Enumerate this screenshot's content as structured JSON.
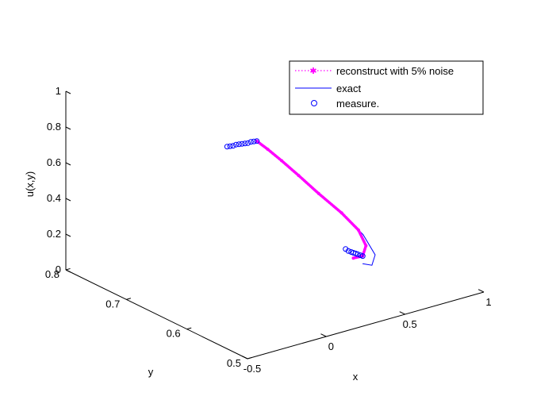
{
  "chart_data": {
    "type": "line",
    "title": "",
    "xlabel": "x",
    "ylabel": "y",
    "zlabel": "u(x,y)",
    "xlim": [
      -0.5,
      1
    ],
    "ylim": [
      0.5,
      0.8
    ],
    "zlim": [
      0,
      1
    ],
    "x_ticks": [
      "-0.5",
      "0",
      "0.5",
      "1"
    ],
    "y_ticks": [
      "0.5",
      "0.6",
      "0.7",
      "0.8"
    ],
    "z_ticks": [
      "0",
      "0.2",
      "0.4",
      "0.6",
      "0.8",
      "1"
    ],
    "grid": false,
    "legend_position": "top-right",
    "series": [
      {
        "name": "reconstruct with 5% noise",
        "style": "dotted-star",
        "color": "#ff00ff",
        "points": [
          [
            0.52,
            0.75,
            0.55
          ],
          [
            0.57,
            0.745,
            0.5
          ],
          [
            0.62,
            0.735,
            0.44
          ],
          [
            0.67,
            0.72,
            0.37
          ],
          [
            0.72,
            0.7,
            0.29
          ],
          [
            0.77,
            0.675,
            0.21
          ],
          [
            0.8,
            0.655,
            0.14
          ],
          [
            0.79,
            0.64,
            0.08
          ],
          [
            0.75,
            0.635,
            0.04
          ],
          [
            0.71,
            0.64,
            0.03
          ]
        ]
      },
      {
        "name": "exact",
        "style": "solid",
        "color": "#0000ff",
        "points": [
          [
            0.52,
            0.75,
            0.55
          ],
          [
            0.57,
            0.745,
            0.5
          ],
          [
            0.62,
            0.735,
            0.44
          ],
          [
            0.67,
            0.72,
            0.37
          ],
          [
            0.72,
            0.7,
            0.29
          ],
          [
            0.77,
            0.675,
            0.21
          ],
          [
            0.81,
            0.65,
            0.12
          ],
          [
            0.81,
            0.63,
            0.04
          ],
          [
            0.77,
            0.625,
            0.0
          ],
          [
            0.73,
            0.63,
            0.01
          ]
        ]
      },
      {
        "name": "measure.",
        "style": "circle",
        "color": "#0000ff",
        "points": [
          [
            0.37,
            0.76,
            0.54
          ],
          [
            0.385,
            0.759,
            0.54
          ],
          [
            0.4,
            0.758,
            0.54
          ],
          [
            0.415,
            0.757,
            0.545
          ],
          [
            0.43,
            0.756,
            0.545
          ],
          [
            0.445,
            0.755,
            0.545
          ],
          [
            0.46,
            0.754,
            0.545
          ],
          [
            0.475,
            0.753,
            0.545
          ],
          [
            0.49,
            0.752,
            0.55
          ],
          [
            0.505,
            0.751,
            0.55
          ],
          [
            0.52,
            0.75,
            0.55
          ],
          [
            0.68,
            0.645,
            0.08
          ],
          [
            0.69,
            0.643,
            0.07
          ],
          [
            0.7,
            0.641,
            0.065
          ],
          [
            0.71,
            0.64,
            0.06
          ],
          [
            0.72,
            0.639,
            0.055
          ],
          [
            0.73,
            0.638,
            0.05
          ],
          [
            0.74,
            0.636,
            0.045
          ],
          [
            0.75,
            0.635,
            0.04
          ]
        ]
      }
    ]
  }
}
